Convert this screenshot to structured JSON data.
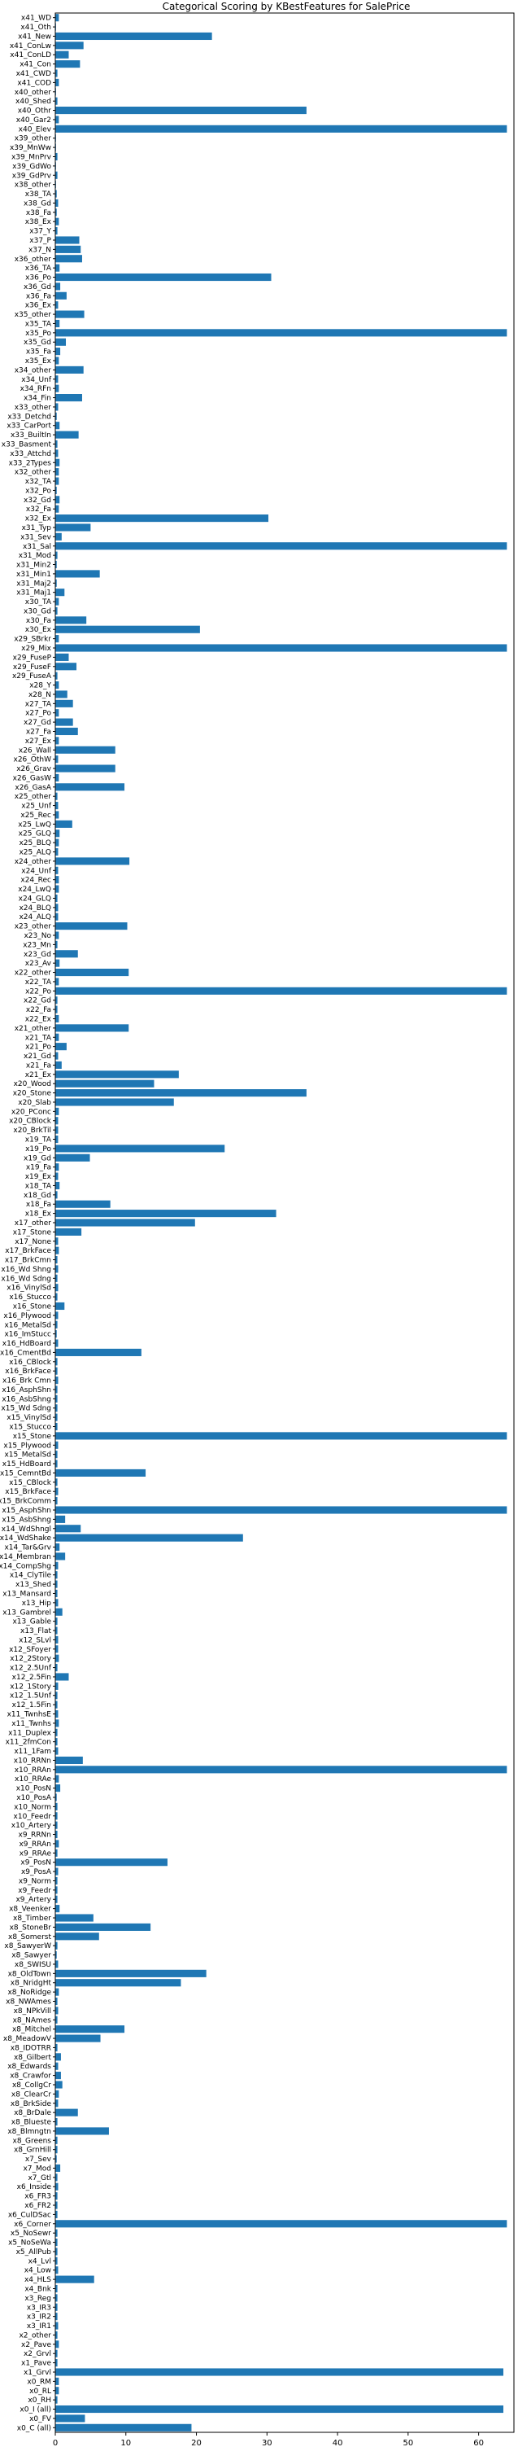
{
  "chart_data": {
    "type": "bar",
    "orientation": "horizontal",
    "title": "Categorical Scoring by KBestFeatures for SalePrice",
    "xlabel": "",
    "ylabel": "",
    "xlim": [
      0,
      65
    ],
    "xticks": [
      0,
      10,
      20,
      30,
      40,
      50,
      60
    ],
    "grid": false,
    "color": "#1f77b4",
    "categories": [
      "x41_WD",
      "x41_Oth",
      "x41_New",
      "x41_ConLw",
      "x41_ConLD",
      "x41_Con",
      "x41_CWD",
      "x41_COD",
      "x40_other",
      "x40_Shed",
      "x40_Othr",
      "x40_Gar2",
      "x40_Elev",
      "x39_other",
      "x39_MnWw",
      "x39_MnPrv",
      "x39_GdWo",
      "x39_GdPrv",
      "x38_other",
      "x38_TA",
      "x38_Gd",
      "x38_Fa",
      "x38_Ex",
      "x37_Y",
      "x37_P",
      "x37_N",
      "x36_other",
      "x36_TA",
      "x36_Po",
      "x36_Gd",
      "x36_Fa",
      "x36_Ex",
      "x35_other",
      "x35_TA",
      "x35_Po",
      "x35_Gd",
      "x35_Fa",
      "x35_Ex",
      "x34_other",
      "x34_Unf",
      "x34_RFn",
      "x34_Fin",
      "x33_other",
      "x33_Detchd",
      "x33_CarPort",
      "x33_BuiltIn",
      "x33_Basment",
      "x33_Attchd",
      "x33_2Types",
      "x32_other",
      "x32_TA",
      "x32_Po",
      "x32_Gd",
      "x32_Fa",
      "x32_Ex",
      "x31_Typ",
      "x31_Sev",
      "x31_Sal",
      "x31_Mod",
      "x31_Min2",
      "x31_Min1",
      "x31_Maj2",
      "x31_Maj1",
      "x30_TA",
      "x30_Gd",
      "x30_Fa",
      "x30_Ex",
      "x29_SBrkr",
      "x29_Mix",
      "x29_FuseP",
      "x29_FuseF",
      "x29_FuseA",
      "x28_Y",
      "x28_N",
      "x27_TA",
      "x27_Po",
      "x27_Gd",
      "x27_Fa",
      "x27_Ex",
      "x26_Wall",
      "x26_OthW",
      "x26_Grav",
      "x26_GasW",
      "x26_GasA",
      "x25_other",
      "x25_Unf",
      "x25_Rec",
      "x25_LwQ",
      "x25_GLQ",
      "x25_BLQ",
      "x25_ALQ",
      "x24_other",
      "x24_Unf",
      "x24_Rec",
      "x24_LwQ",
      "x24_GLQ",
      "x24_BLQ",
      "x24_ALQ",
      "x23_other",
      "x23_No",
      "x23_Mn",
      "x23_Gd",
      "x23_Av",
      "x22_other",
      "x22_TA",
      "x22_Po",
      "x22_Gd",
      "x22_Fa",
      "x22_Ex",
      "x21_other",
      "x21_TA",
      "x21_Po",
      "x21_Gd",
      "x21_Fa",
      "x21_Ex",
      "x20_Wood",
      "x20_Stone",
      "x20_Slab",
      "x20_PConc",
      "x20_CBlock",
      "x20_BrkTil",
      "x19_TA",
      "x19_Po",
      "x19_Gd",
      "x19_Fa",
      "x19_Ex",
      "x18_TA",
      "x18_Gd",
      "x18_Fa",
      "x18_Ex",
      "x17_other",
      "x17_Stone",
      "x17_None",
      "x17_BrkFace",
      "x17_BrkCmn",
      "x16_Wd Shng",
      "x16_Wd Sdng",
      "x16_VinylSd",
      "x16_Stucco",
      "x16_Stone",
      "x16_Plywood",
      "x16_MetalSd",
      "x16_ImStucc",
      "x16_HdBoard",
      "x16_CmentBd",
      "x16_CBlock",
      "x16_BrkFace",
      "x16_Brk Cmn",
      "x16_AsphShn",
      "x16_AsbShng",
      "x15_Wd Sdng",
      "x15_VinylSd",
      "x15_Stucco",
      "x15_Stone",
      "x15_Plywood",
      "x15_MetalSd",
      "x15_HdBoard",
      "x15_CemntBd",
      "x15_CBlock",
      "x15_BrkFace",
      "x15_BrkComm",
      "x15_AsphShn",
      "x15_AsbShng",
      "x14_WdShngl",
      "x14_WdShake",
      "x14_Tar&Grv",
      "x14_Membran",
      "x14_CompShg",
      "x14_ClyTile",
      "x13_Shed",
      "x13_Mansard",
      "x13_Hip",
      "x13_Gambrel",
      "x13_Gable",
      "x13_Flat",
      "x12_SLvl",
      "x12_SFoyer",
      "x12_2Story",
      "x12_2.5Unf",
      "x12_2.5Fin",
      "x12_1Story",
      "x12_1.5Unf",
      "x12_1.5Fin",
      "x11_TwnhsE",
      "x11_Twnhs",
      "x11_Duplex",
      "x11_2fmCon",
      "x11_1Fam",
      "x10_RRNn",
      "x10_RRAn",
      "x10_RRAe",
      "x10_PosN",
      "x10_PosA",
      "x10_Norm",
      "x10_Feedr",
      "x10_Artery",
      "x9_RRNn",
      "x9_RRAn",
      "x9_RRAe",
      "x9_PosN",
      "x9_PosA",
      "x9_Norm",
      "x9_Feedr",
      "x9_Artery",
      "x8_Veenker",
      "x8_Timber",
      "x8_StoneBr",
      "x8_Somerst",
      "x8_SawyerW",
      "x8_Sawyer",
      "x8_SWISU",
      "x8_OldTown",
      "x8_NridgHt",
      "x8_NoRidge",
      "x8_NWAmes",
      "x8_NPkVill",
      "x8_NAmes",
      "x8_Mitchel",
      "x8_MeadowV",
      "x8_IDOTRR",
      "x8_Gilbert",
      "x8_Edwards",
      "x8_Crawfor",
      "x8_CollgCr",
      "x8_ClearCr",
      "x8_BrkSide",
      "x8_BrDale",
      "x8_Blueste",
      "x8_Blmngtn",
      "x8_Greens",
      "x8_GrnHill",
      "x7_Sev",
      "x7_Mod",
      "x7_Gtl",
      "x6_Inside",
      "x6_FR3",
      "x6_FR2",
      "x6_CulDSac",
      "x6_Corner",
      "x5_NoSewr",
      "x5_NoSeWa",
      "x5_AllPub",
      "x4_Lvl",
      "x4_Low",
      "x4_HLS",
      "x4_Bnk",
      "x3_Reg",
      "x3_IR3",
      "x3_IR2",
      "x3_IR1",
      "x2_other",
      "x2_Pave",
      "x2_Grvl",
      "x1_Pave",
      "x1_Grvl",
      "x0_RM",
      "x0_RL",
      "x0_RH",
      "x0_I (all)",
      "x0_FV",
      "x0_C (all)"
    ],
    "tick_labels_displayed": [
      "x41_WD",
      "x41_Oth",
      "x41_New",
      "x41_ConLw",
      "x41_ConLD",
      "x41_Con",
      "x41_CWD",
      "x41_COD",
      "x40_other",
      "x40_Shed",
      "x40_Othr",
      "x40_Gar2",
      "x40_Elev",
      "x39_other",
      "x39_MnWw",
      "x39_MnPrv",
      "x39_GdWo",
      "x39_GdPrv",
      "x38_other",
      "x38_TA",
      "x38_Gd",
      "x38_Fa",
      "x38_Ex",
      "x37_Y",
      "x37_P",
      "x37_N",
      "x36_other",
      "x36_TA",
      "x36_Po",
      "x36_Gd",
      "x36_Fa",
      "x36_Ex",
      "x35_other",
      "x35_TA",
      "x35_Po",
      "x35_Gd",
      "x35_Fa",
      "x35_Ex",
      "x34_other",
      "x34_Unf",
      "x34_RFn",
      "x34_Fin",
      "x33_other",
      "x33_Detchd",
      "x33_CarPort",
      "x33_BuiltIn",
      "x33_Basment",
      "x33_Attchd",
      "x33_2Types",
      "x32_other",
      "x32_TA",
      "x32_Po",
      "x32_Gd",
      "x32_Fa",
      "x32_Ex",
      "x31_Typ",
      "x31_Sev",
      "x31_Sal",
      "x31_Mod",
      "x31_Min2",
      "x31_Min1",
      "x31_Maj2",
      "x31_Maj1",
      "x30_TA",
      "x30_Gd",
      "x30_Fa",
      "x30_Ex",
      "x29_SBrkr",
      "x29_Mix",
      "x29_FuseP",
      "x29_FuseF",
      "x29_FuseA",
      "x28_Y",
      "x28_N",
      "x27_TA",
      "x27_Po",
      "x27_Gd",
      "x27_Fa",
      "x27_Ex",
      "x26_Wall",
      "x26_OthW",
      "x26_Grav",
      "x26_GasW",
      "x26_GasA",
      "x25_other",
      "x25_Unf",
      "x25_Rec",
      "x25_LwQ",
      "x25_GLQ",
      "x25_BLQ",
      "x25_ALQ",
      "x24_other",
      "x24_Unf",
      "x24_Rec",
      "x24_LwQ",
      "x24_GLQ",
      "x24_BLQ",
      "x24_ALQ",
      "x23_other",
      "x23_No",
      "x23_Mn",
      "x23_Gd",
      "x23_Av",
      "x22_other",
      "x22_TA",
      "x22_Po",
      "x22_Gd",
      "x22_Fa",
      "x22_Ex",
      "x21_other",
      "x21_TA",
      "x21_Po",
      "x21_Gd",
      "x21_Fa",
      "x21_Ex",
      "x20_Wood",
      "x20_Stone",
      "x20_Slab",
      "x20_PConc",
      "x20_CBlock",
      "x20_BrkTil",
      "x19_TA",
      "x19_Po",
      "x19_Gd",
      "x19_Fa",
      "x19_Ex",
      "x18_TA",
      "x18_Gd",
      "x18_Fa",
      "x18_Ex",
      "x17_other",
      "x17_Stone",
      "x17_None",
      "x17_BrkFace",
      "x17_BrkCmn",
      "x16_Wd Shng",
      "x16_Wd Sdng",
      "x16_VinylSd",
      "x16_Stucco",
      "x16_Stone",
      "x16_Plywood",
      "x16_MetalSd",
      "x16_ImStucc",
      "x16_HdBoard",
      "x16_CmentBd",
      "x16_CBlock",
      "x16_BrkFace",
      "x16_Brk Cmn",
      "x16_AsphShn",
      "x16_AsbShng",
      "x15_Wd Sdng",
      "x15_VinylSd",
      "x15_Stucco",
      "x15_Stone",
      "x15_Plywood",
      "x15_MetalSd",
      "x15_HdBoard",
      "x15_CemntBd",
      "x15_CBlock",
      "x15_BrkFace",
      "x15_BrkComm",
      "x15_AsphShn",
      "x15_AsbShng",
      "x14_WdShngl",
      "x14_WdShake",
      "x14_Tar&Grv",
      "x14_Membran",
      "x14_CompShg",
      "x14_ClyTile",
      "x13_Shed",
      "x13_Mansard",
      "x13_Hip",
      "x13_Gambrel",
      "x13_Gable",
      "x13_Flat",
      "x12_SLvl",
      "x12_SFoyer",
      "x12_2Story",
      "x12_2.5Unf",
      "x12_2.5Fin",
      "x12_1Story",
      "x12_1.5Unf",
      "x12_1.5Fin",
      "x11_TwnhsE",
      "x11_Twnhs",
      "x11_Duplex",
      "x11_2fmCon",
      "x11_1Fam",
      "x10_RRNn",
      "x10_RRAn",
      "x10_RRAe",
      "x10_PosN",
      "x10_PosA",
      "x10_Norm",
      "x10_Feedr",
      "x10_Artery",
      "x9_RRNn",
      "x9_RRAn",
      "x9_RRAe",
      "x9_PosN",
      "x9_PosA",
      "x9_Norm",
      "x9_Feedr",
      "x9_Artery",
      "x8_Veenker",
      "x8_Timber",
      "x8_StoneBr",
      "x8_Somerst",
      "x8_SawyerW",
      "x8_Sawyer",
      "x8_SWISU",
      "x8_OldTown",
      "x8_NridgHt",
      "x8_NoRidge",
      "x8_NWAmes",
      "x8_NPkVill",
      "x8_NAmes",
      "x8_Mitchel",
      "x8_MeadowV",
      "x8_IDOTRR",
      "x8_Gilbert",
      "x8_Edwards",
      "x8_Crawfor",
      "x8_CollgCr",
      "x8_ClearCr",
      "x8_BrkSide",
      "x8_BrDale",
      "x8_Blueste",
      "x8_Blmngtn",
      "x8_Greens",
      "x8_GrnHill",
      "x7_Sev",
      "x7_Mod",
      "x7_Gtl",
      "x6_Inside",
      "x6_FR3",
      "x6_FR2",
      "x6_CulDSac",
      "x6_Corner",
      "x5_NoSewr",
      "x5_NoSeWa",
      "x5_AllPub",
      "x4_Lvl",
      "x4_Low",
      "x4_HLS",
      "x4_Bnk",
      "x3_Reg",
      "x3_IR3",
      "x3_IR2",
      "x3_IR1",
      "x2_other",
      "x2_Pave",
      "x2_Grvl",
      "x1_Pave",
      "x1_Grvl",
      "x0_RM",
      "x0_RL",
      "x0_RH",
      "x0_I (all)",
      "x0_FV",
      "x0_C (all)"
    ],
    "values": [
      0.5,
      0.1,
      22.2,
      4.0,
      1.9,
      3.5,
      0.3,
      0.5,
      0.1,
      0.3,
      35.6,
      0.5,
      64.0,
      0.1,
      0.1,
      0.3,
      0.1,
      0.3,
      0.1,
      0.2,
      0.4,
      0.2,
      0.5,
      0.3,
      3.4,
      3.6,
      3.8,
      0.6,
      30.6,
      0.7,
      1.6,
      0.4,
      4.1,
      0.6,
      64.0,
      1.5,
      0.7,
      0.5,
      4.0,
      0.4,
      0.5,
      3.8,
      0.4,
      0.2,
      0.6,
      3.3,
      0.3,
      0.4,
      0.6,
      0.5,
      0.5,
      0.2,
      0.6,
      0.5,
      30.2,
      5.0,
      0.9,
      64.0,
      0.3,
      0.2,
      6.3,
      0.2,
      1.3,
      0.5,
      0.3,
      4.4,
      20.5,
      0.5,
      64.0,
      1.9,
      3.0,
      0.3,
      0.5,
      1.7,
      2.5,
      0.5,
      2.5,
      3.2,
      0.5,
      8.5,
      0.4,
      8.5,
      0.5,
      9.8,
      0.3,
      0.4,
      0.5,
      2.4,
      0.6,
      0.5,
      0.4,
      10.5,
      0.4,
      0.5,
      0.5,
      0.3,
      0.4,
      0.4,
      10.2,
      0.5,
      0.3,
      3.2,
      0.6,
      10.4,
      0.5,
      64.0,
      0.3,
      0.3,
      0.5,
      10.4,
      0.5,
      1.6,
      0.4,
      0.9,
      17.5,
      14.0,
      35.6,
      16.8,
      0.5,
      0.4,
      0.4,
      0.4,
      24.0,
      4.9,
      0.5,
      0.4,
      0.6,
      0.3,
      7.8,
      31.3,
      19.8,
      3.7,
      0.4,
      0.5,
      0.3,
      0.4,
      0.3,
      0.4,
      0.3,
      1.3,
      0.4,
      0.3,
      0.2,
      0.4,
      12.2,
      0.3,
      0.3,
      0.4,
      0.3,
      0.3,
      0.3,
      0.3,
      0.3,
      64.0,
      0.4,
      0.3,
      0.3,
      12.8,
      0.3,
      0.4,
      0.3,
      64.0,
      1.4,
      3.6,
      26.6,
      0.6,
      1.4,
      0.4,
      0.3,
      0.3,
      0.3,
      0.4,
      1.0,
      0.3,
      0.3,
      0.4,
      0.4,
      0.5,
      0.3,
      1.9,
      0.4,
      0.3,
      0.3,
      0.4,
      0.5,
      0.3,
      0.3,
      0.4,
      3.9,
      64.0,
      0.5,
      0.7,
      0.2,
      0.3,
      0.3,
      0.3,
      0.3,
      0.5,
      0.3,
      15.9,
      0.4,
      0.3,
      0.3,
      0.3,
      0.6,
      5.4,
      13.5,
      6.2,
      0.3,
      0.2,
      0.4,
      21.4,
      17.8,
      0.5,
      0.3,
      0.4,
      0.3,
      9.8,
      6.4,
      0.3,
      0.8,
      0.4,
      0.8,
      1.0,
      0.5,
      0.4,
      3.2,
      0.3,
      7.6,
      0.3,
      0.3,
      0.2,
      0.7,
      0.3,
      0.4,
      0.3,
      0.3,
      0.3,
      64.0,
      0.3,
      0.3,
      0.3,
      0.3,
      0.4,
      5.5,
      0.3,
      0.3,
      0.3,
      0.3,
      0.4,
      0.3,
      0.5,
      0.3,
      0.3,
      63.5,
      0.5,
      0.5,
      0.3,
      63.5,
      4.2,
      19.3
    ]
  }
}
